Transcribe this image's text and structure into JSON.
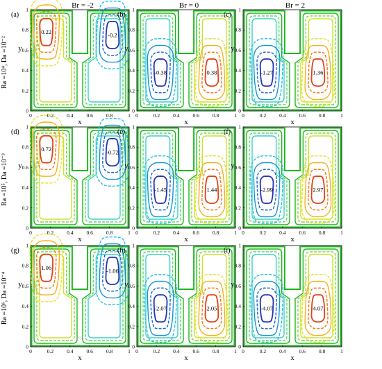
{
  "columns": [
    {
      "label": "Br = -2"
    },
    {
      "label": "Br = 0"
    },
    {
      "label": "Br = 2"
    }
  ],
  "rows": [
    {
      "label": "Ra =10⁴, Da =10⁻²"
    },
    {
      "label": "Ra =10⁵, Da =10⁻³"
    },
    {
      "label": "Ra =10⁶, Da =10⁻⁴"
    }
  ],
  "axes": {
    "xlabel": "x",
    "ylabel": "y",
    "xticks": [
      "0",
      "0.2",
      "0.4",
      "0.6",
      "0.8",
      "1"
    ],
    "yticks": [
      "0",
      "0.2",
      "0.4",
      "0.6",
      "0.8",
      "1"
    ]
  },
  "panels": [
    {
      "tag": "(a)",
      "mode": "sym",
      "values": [
        "0.22",
        "-0.2"
      ]
    },
    {
      "tag": "(b)",
      "mode": "bulge",
      "values": [
        "-0.38",
        "0.38"
      ]
    },
    {
      "tag": "(c)",
      "mode": "bulge",
      "values": [
        "-1.27",
        "1.36"
      ]
    },
    {
      "tag": "(d)",
      "mode": "sym",
      "values": [
        "0.72",
        "-0.72"
      ]
    },
    {
      "tag": "(e)",
      "mode": "bulge",
      "values": [
        "-1.45",
        "1.44"
      ]
    },
    {
      "tag": "(f)",
      "mode": "bulge",
      "values": [
        "-2.99",
        "2.97"
      ]
    },
    {
      "tag": "(g)",
      "mode": "sym",
      "values": [
        "1.06",
        "-1.06"
      ]
    },
    {
      "tag": "(h)",
      "mode": "bulge",
      "values": [
        "-2.07",
        "2.05"
      ]
    },
    {
      "tag": "(i)",
      "mode": "bulge",
      "values": [
        "-4.07",
        "4.07"
      ]
    }
  ],
  "colors": {
    "frame": "#000000",
    "cavity_boundary": "#aaaaaa",
    "contour_ramp": [
      "#21b121",
      "#7fd63a",
      "#e4e628",
      "#f8a515",
      "#e84a12",
      "#b7e51e",
      "#0a84d6",
      "#12b6e0",
      "#37d8c7",
      "#6ae89c",
      "#2633b8"
    ]
  }
}
